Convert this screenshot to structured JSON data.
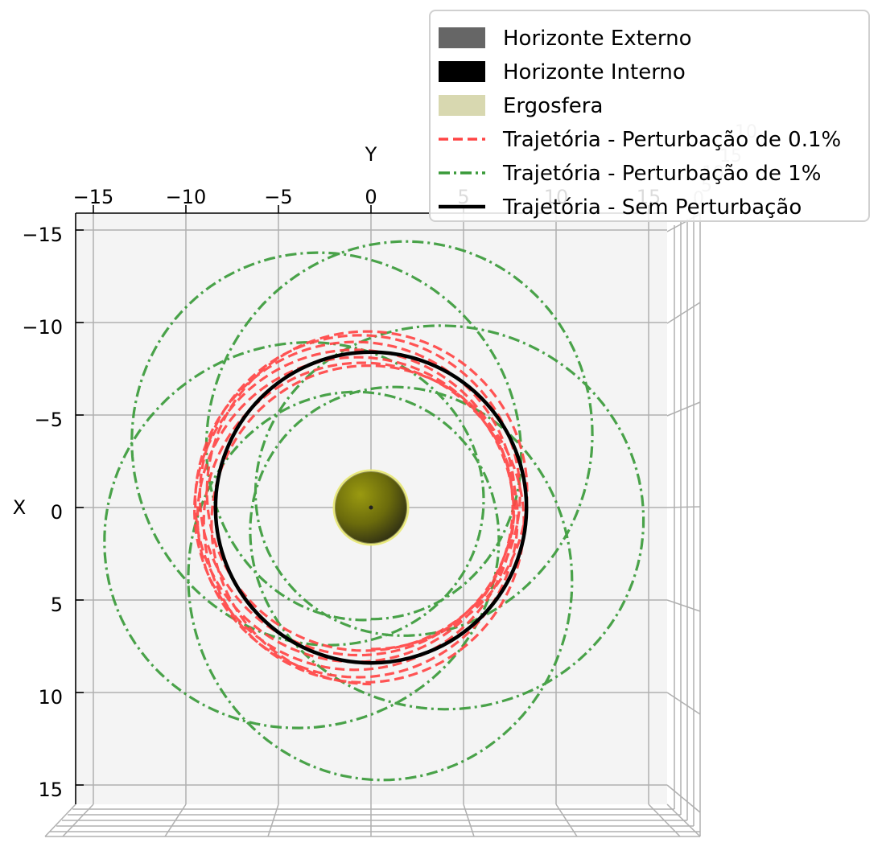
{
  "chart_data": {
    "type": "line",
    "view": "3D plot viewed from above (top-down projection onto X-Y plane)",
    "title": "",
    "xlabel": "X",
    "ylabel": "Y",
    "x_axis_ticks": [
      -15,
      -10,
      -5,
      0,
      5,
      10,
      15
    ],
    "y_axis_ticks": [
      -15,
      -10,
      -5,
      0,
      5,
      10,
      15
    ],
    "xlim": [
      -15.5,
      16.5
    ],
    "ylim": [
      -15.5,
      15.5
    ],
    "ghost_tick_labels": [
      "10",
      "15",
      "10",
      "5",
      "0"
    ],
    "grid": true,
    "legend_position": "top-right",
    "black_hole": {
      "outer_horizon_radius": 2.0,
      "center": [
        0,
        0
      ],
      "colors": {
        "outer_horizon": "#666666",
        "inner_horizon": "#000000",
        "ergosphere": "#d8d8b0",
        "sphere_fill": "#808000"
      }
    },
    "series": [
      {
        "name": "Horizonte Externo",
        "kind": "surface",
        "color": "#666666"
      },
      {
        "name": "Horizonte Interno",
        "kind": "surface",
        "color": "#000000"
      },
      {
        "name": "Ergosfera",
        "kind": "surface",
        "color": "#d8d8b0"
      },
      {
        "name": "Trajetória - Perturbação de 0.1%",
        "kind": "line",
        "style": "dashed",
        "color": "#ff4444",
        "orbit": {
          "a": 8.6,
          "e": 0.11,
          "precession_deg_per_rev": 26,
          "revolutions": 7
        }
      },
      {
        "name": "Trajetória - Perturbação de 1%",
        "kind": "line",
        "style": "dashdot",
        "color": "#3a9a3a",
        "orbit": {
          "a": 10.4,
          "e": 0.42,
          "precession_deg_per_rev": 62,
          "revolutions": 6
        }
      },
      {
        "name": "Trajetória - Sem Perturbação",
        "kind": "line",
        "style": "solid",
        "color": "#000000",
        "orbit": {
          "radius": 8.4,
          "center": [
            0,
            0
          ]
        }
      }
    ]
  }
}
